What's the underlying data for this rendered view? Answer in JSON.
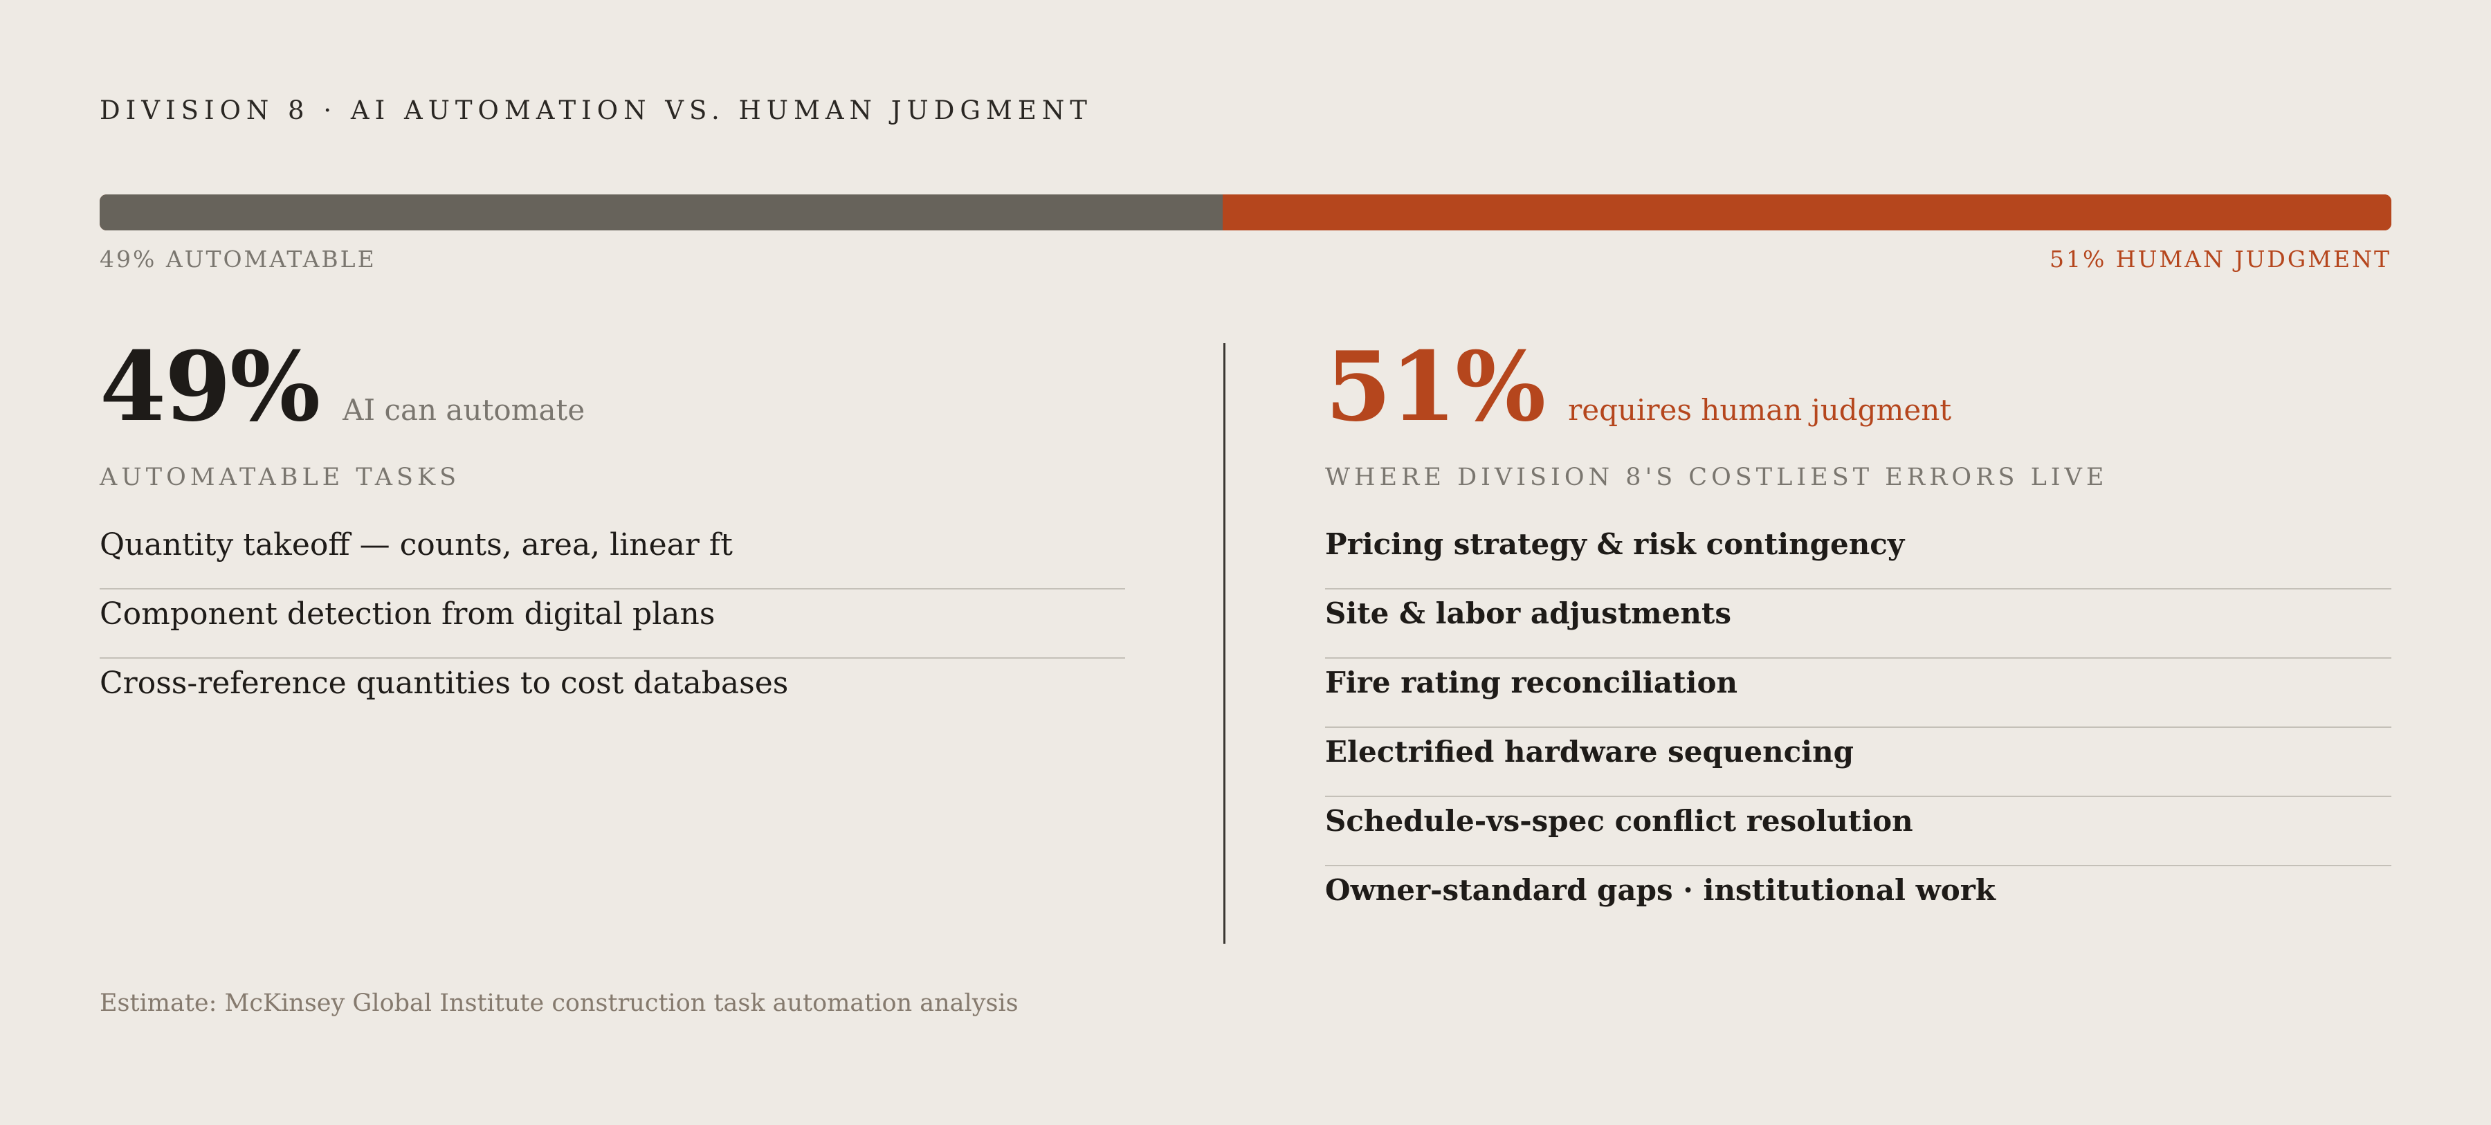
{
  "header": {
    "title": "DIVISION 8 · AI AUTOMATION VS. HUMAN JUDGMENT"
  },
  "split_bar": {
    "automatable_fraction": 0.49,
    "human_fraction": 0.51,
    "left_label": "49% AUTOMATABLE",
    "right_label": "51% HUMAN JUDGMENT",
    "colors": {
      "automatable": "#67635B",
      "human": "#B5461D"
    }
  },
  "left_column": {
    "big_number": "49%",
    "caption": "AI can automate",
    "section_label": "AUTOMATABLE TASKS",
    "tasks": [
      "Quantity takeoff — counts, area, linear ft",
      "Component detection from digital plans",
      "Cross-reference quantities to cost databases"
    ]
  },
  "right_column": {
    "big_number": "51%",
    "caption": "requires human judgment",
    "section_label": "WHERE DIVISION 8'S COSTLIEST ERRORS LIVE",
    "tasks": [
      "Pricing strategy & risk contingency",
      "Site & labor adjustments",
      "Fire rating reconciliation",
      "Electrified hardware sequencing",
      "Schedule-vs-spec conflict resolution",
      "Owner-standard gaps · institutional work"
    ]
  },
  "footnote": "Estimate: McKinsey Global Institute construction task automation analysis",
  "colors": {
    "background": "#EEEAE4",
    "accent": "#B5461D",
    "neutral": "#67635B",
    "text_dark": "#1E1B18",
    "text_muted": "#7A766F"
  }
}
